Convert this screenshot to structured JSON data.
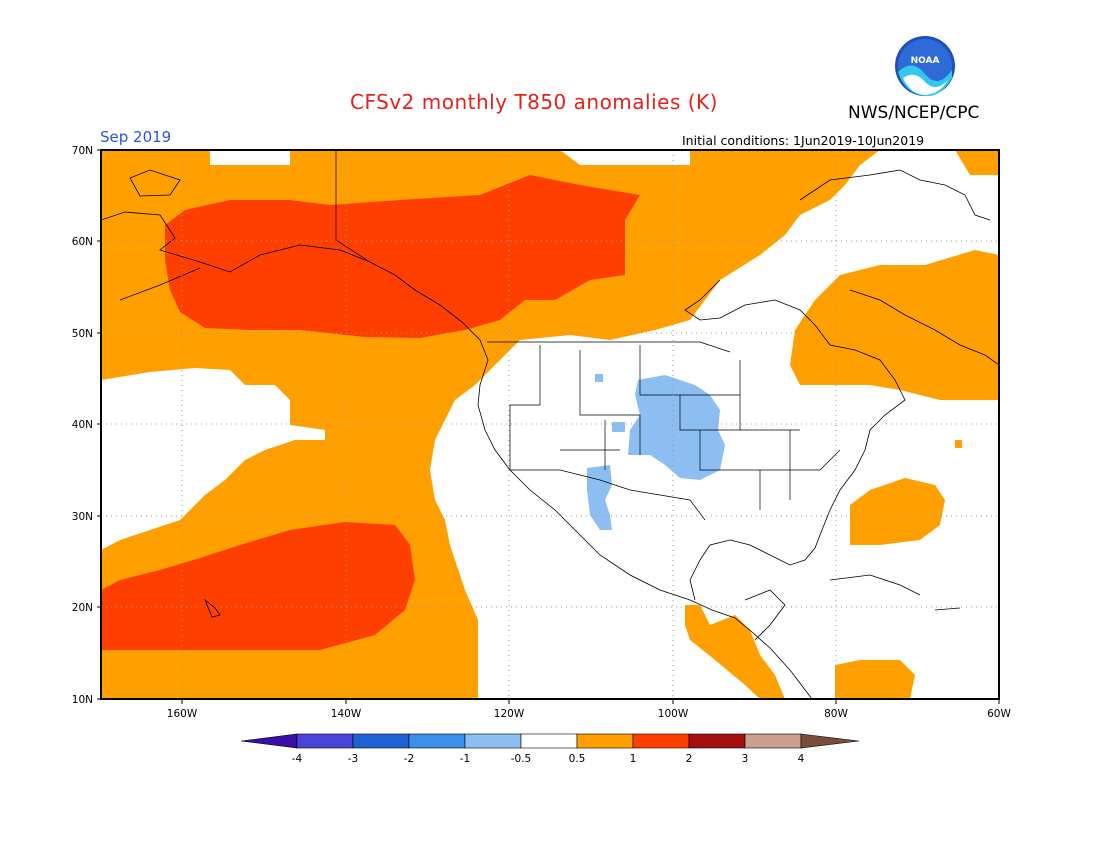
{
  "header": {
    "title": "CFSv2 monthly T850 anomalies (K)",
    "org": "NWS/NCEP/CPC",
    "period": "Sep 2019",
    "initial_conditions": "Initial conditions: 1Jun2019-10Jun2019"
  },
  "logo": {
    "text": "NOAA",
    "icon": "noaa-logo-icon"
  },
  "map": {
    "lat_range": [
      10,
      70
    ],
    "lon_range": [
      -170,
      -60
    ],
    "lat_ticks": [
      "70N",
      "60N",
      "50N",
      "40N",
      "30N",
      "20N",
      "10N"
    ],
    "lon_ticks": [
      "160W",
      "140W",
      "120W",
      "100W",
      "80W",
      "60W"
    ],
    "grid": "dotted"
  },
  "colorbar": {
    "labels": [
      "-4",
      "-3",
      "-2",
      "-1",
      "-0.5",
      "0.5",
      "1",
      "2",
      "3",
      "4"
    ],
    "colors": [
      "#3a0fa8",
      "#4a44d8",
      "#1f62d4",
      "#3d8fec",
      "#8cbef2",
      "#ffffff",
      "#ff9f00",
      "#ff3f00",
      "#a50f0f",
      "#c9a08e",
      "#7a4c3c"
    ]
  }
}
